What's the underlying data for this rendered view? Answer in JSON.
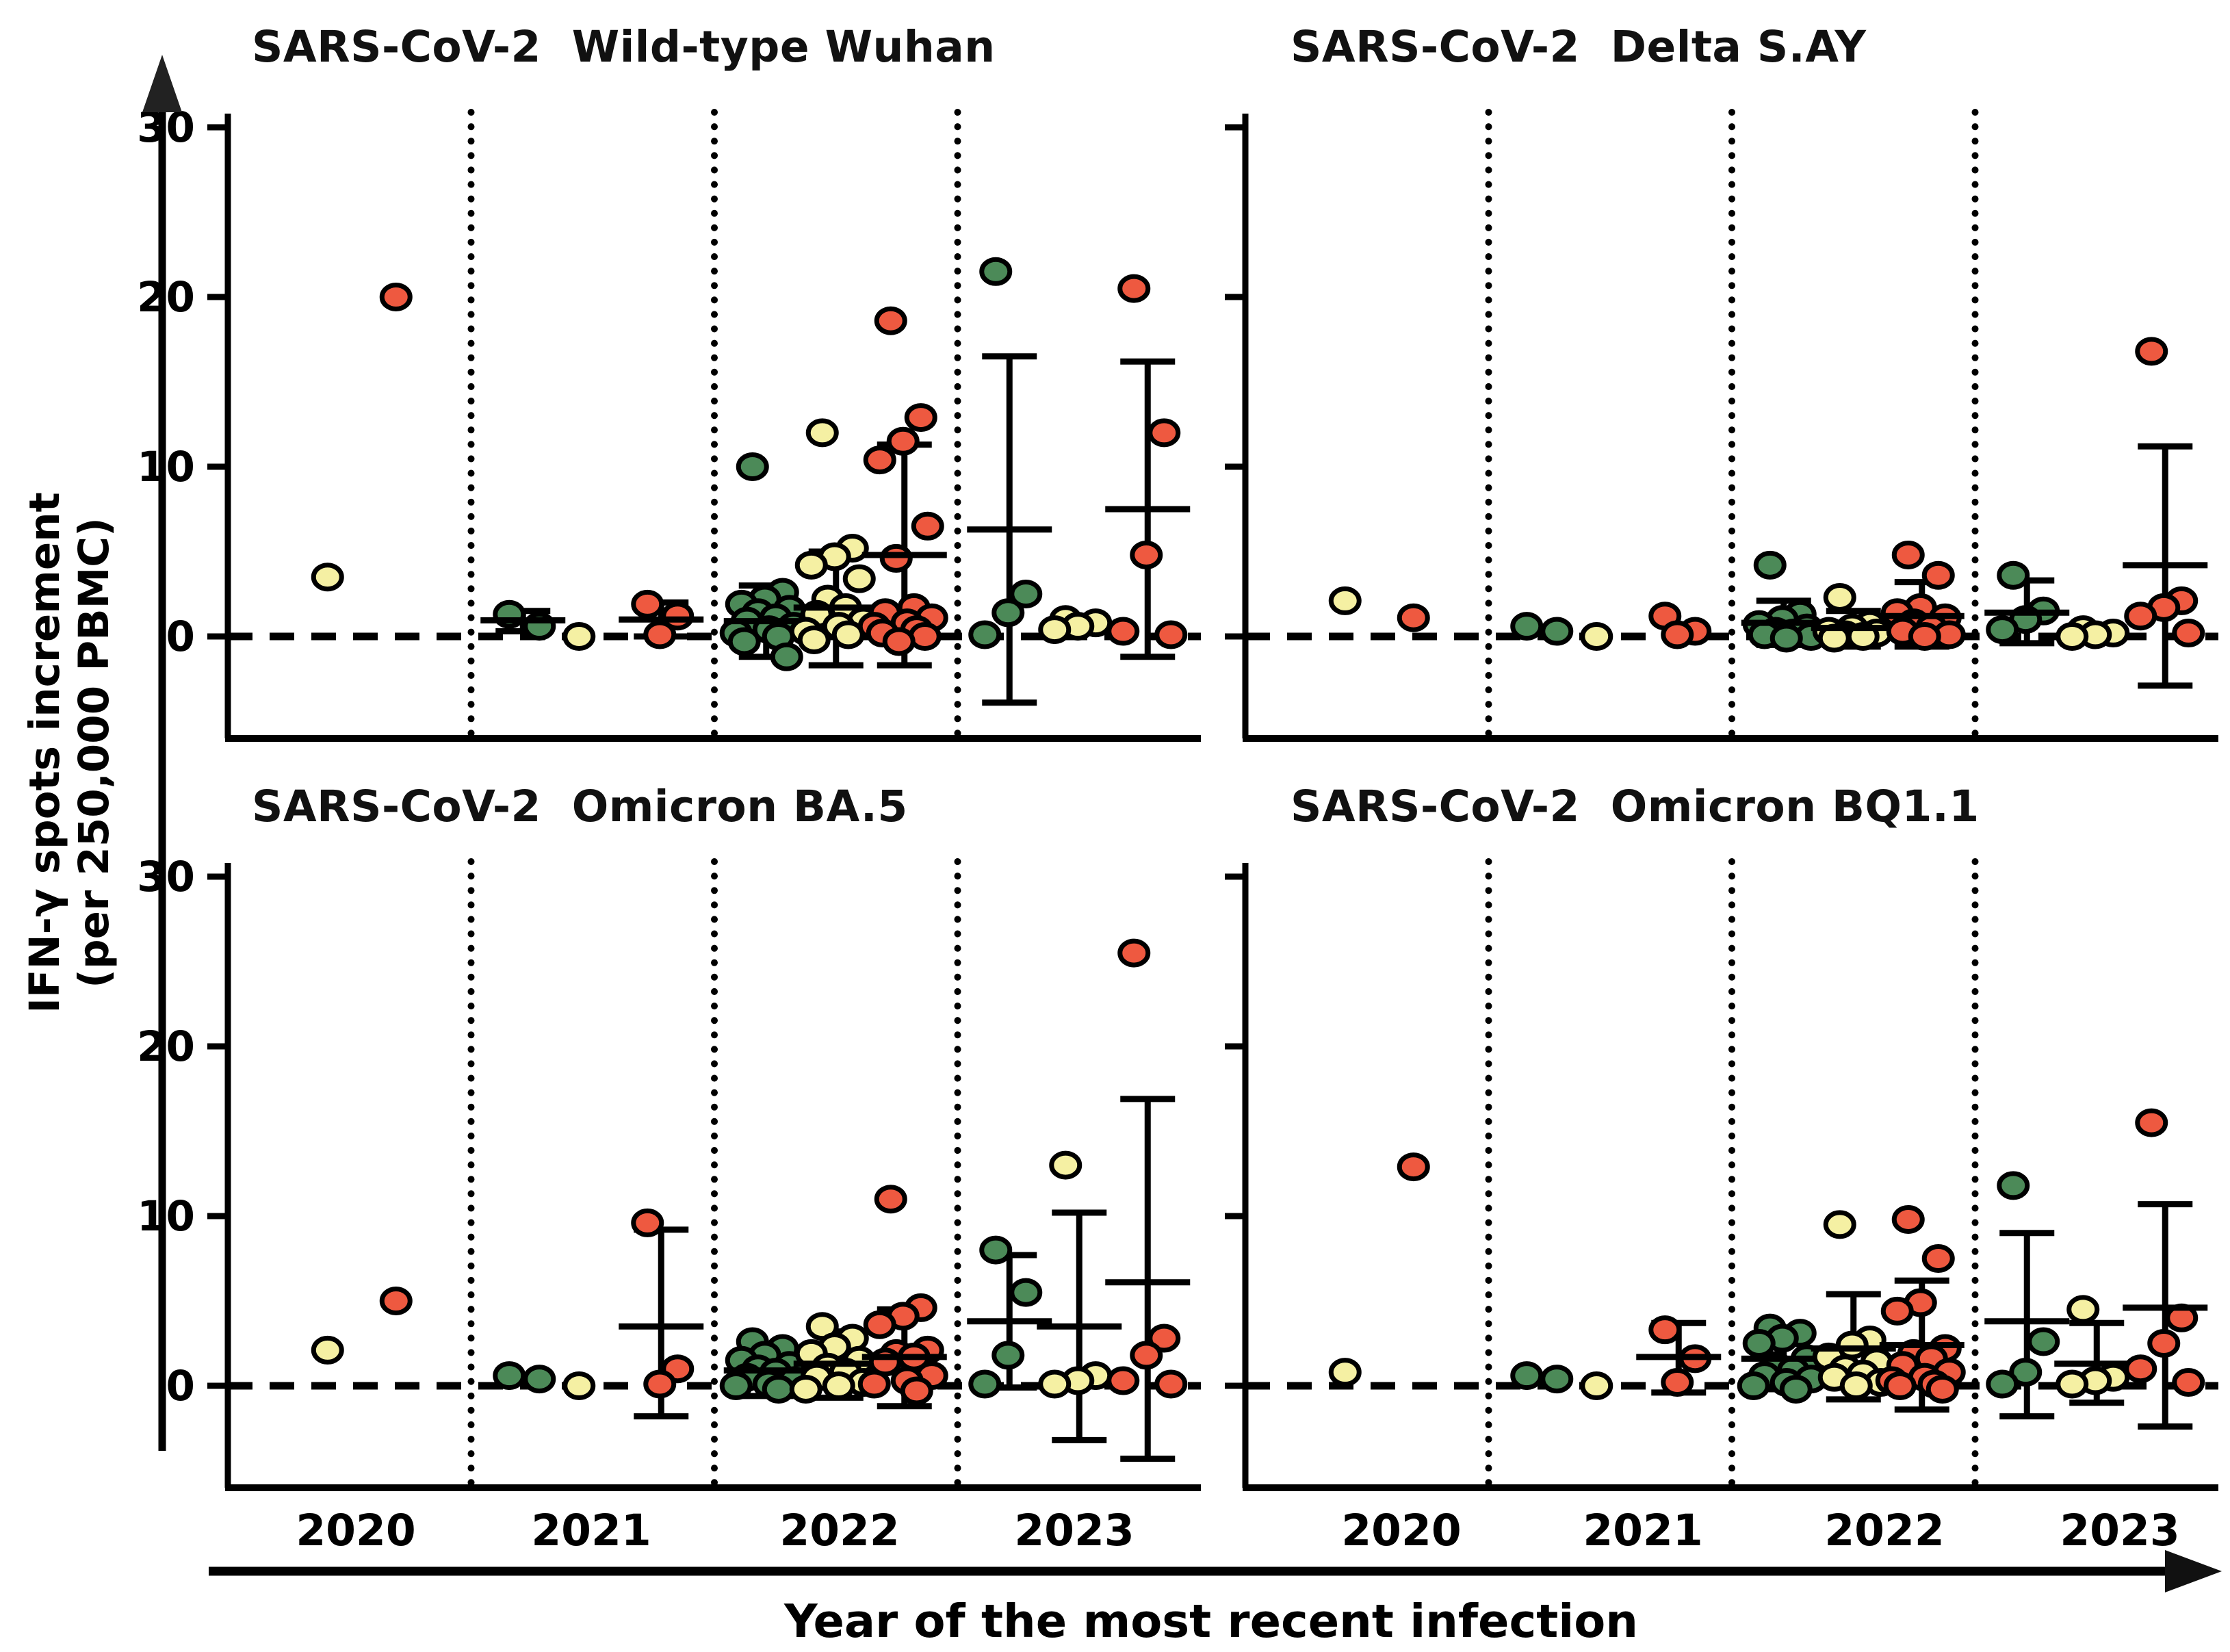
{
  "figure": {
    "ylabel_line1": "IFN-γ spots increment",
    "ylabel_line2": "(per 250,000 PBMC)",
    "xlabel": "Year of the most recent infection",
    "years": [
      "2020",
      "2021",
      "2022",
      "2023"
    ]
  },
  "colors": {
    "group_green": "#4C8A58",
    "group_yellow": "#F5F0A3",
    "group_red": "#EE5940",
    "outline": "#000000"
  },
  "chart_data": [
    {
      "type": "scatter",
      "title": "SARS-CoV-2  Wild-type Wuhan",
      "ylabel": "IFN-γ spots increment (per 250,000 PBMC)",
      "ylim": [
        -6,
        32
      ],
      "yticks": [
        0,
        10,
        20,
        30
      ],
      "ytick_labels_shown": true,
      "zero_line": true,
      "grid": "dotted-year-separators",
      "series": [
        {
          "year": "2020",
          "color": "yellow",
          "values": [
            3.5
          ],
          "err": null
        },
        {
          "year": "2020",
          "color": "red",
          "values": [
            20.0
          ],
          "err": null
        },
        {
          "year": "2021",
          "color": "green",
          "values": [
            1.3,
            0.6
          ],
          "err": [
            0.3,
            0.95,
            1.5
          ]
        },
        {
          "year": "2021",
          "color": "yellow",
          "values": [
            0.0
          ],
          "err": null
        },
        {
          "year": "2021",
          "color": "red",
          "values": [
            1.9,
            1.2,
            0.1
          ],
          "err": [
            0.0,
            1.0,
            2.0
          ]
        },
        {
          "year": "2022",
          "color": "green",
          "values": [
            10.0,
            2.6,
            2.2,
            1.9,
            1.6,
            1.4,
            1.1,
            0.9,
            0.6,
            0.4,
            0.2,
            0.0,
            -0.3,
            -1.2
          ],
          "err": [
            -1.2,
            0.9,
            3.0
          ]
        },
        {
          "year": "2022",
          "color": "yellow",
          "values": [
            12.0,
            5.2,
            4.7,
            4.2,
            3.4,
            2.2,
            1.7,
            1.3,
            0.9,
            0.6,
            0.3,
            0.1,
            -0.2
          ],
          "err": [
            -1.7,
            1.7,
            5.0
          ]
        },
        {
          "year": "2022",
          "color": "red",
          "values": [
            18.6,
            12.9,
            11.5,
            10.4,
            6.5,
            4.6,
            1.7,
            1.4,
            1.1,
            0.8,
            0.6,
            0.4,
            0.2,
            0.0,
            -0.3
          ],
          "err": [
            -1.7,
            4.8,
            11.3
          ]
        },
        {
          "year": "2023",
          "color": "green",
          "values": [
            21.5,
            2.5,
            1.4,
            0.1
          ],
          "err": [
            -3.9,
            6.3,
            16.5
          ]
        },
        {
          "year": "2023",
          "color": "yellow",
          "values": [
            1.0,
            0.8,
            0.6,
            0.4
          ],
          "err": null
        },
        {
          "year": "2023",
          "color": "red",
          "values": [
            20.5,
            12.0,
            4.8,
            0.3,
            0.1
          ],
          "err": [
            -1.2,
            7.5,
            16.2
          ]
        }
      ]
    },
    {
      "type": "scatter",
      "title": "SARS-CoV-2  Delta S.AY",
      "ylim": [
        -6,
        32
      ],
      "yticks": [
        0,
        10,
        20,
        30
      ],
      "ytick_labels_shown": false,
      "zero_line": true,
      "grid": "dotted-year-separators",
      "series": [
        {
          "year": "2020",
          "color": "yellow",
          "values": [
            2.1
          ],
          "err": null
        },
        {
          "year": "2020",
          "color": "red",
          "values": [
            1.1
          ],
          "err": null
        },
        {
          "year": "2021",
          "color": "green",
          "values": [
            0.6,
            0.3
          ],
          "err": null
        },
        {
          "year": "2021",
          "color": "yellow",
          "values": [
            0.0
          ],
          "err": null
        },
        {
          "year": "2021",
          "color": "red",
          "values": [
            1.2,
            0.3,
            0.1
          ],
          "err": null
        },
        {
          "year": "2022",
          "color": "green",
          "values": [
            4.2,
            1.3,
            1.0,
            0.7,
            0.5,
            0.3,
            0.2,
            0.1,
            0.0,
            -0.1
          ],
          "err": [
            -0.5,
            0.8,
            2.1
          ]
        },
        {
          "year": "2022",
          "color": "yellow",
          "values": [
            2.3,
            0.7,
            0.5,
            0.3,
            0.2,
            0.1,
            0.0,
            -0.1
          ],
          "err": [
            -0.6,
            0.5,
            1.5
          ]
        },
        {
          "year": "2022",
          "color": "red",
          "values": [
            4.8,
            3.6,
            1.7,
            1.4,
            1.1,
            0.8,
            0.5,
            0.3,
            0.1,
            0.0
          ],
          "err": [
            -0.6,
            1.2,
            3.2
          ]
        },
        {
          "year": "2023",
          "color": "green",
          "values": [
            3.6,
            1.5,
            1.0,
            0.4
          ],
          "err": [
            -0.4,
            1.4,
            3.3
          ]
        },
        {
          "year": "2023",
          "color": "yellow",
          "values": [
            0.4,
            0.2,
            0.1,
            0.0
          ],
          "err": null
        },
        {
          "year": "2023",
          "color": "red",
          "values": [
            16.8,
            2.1,
            1.7,
            1.2,
            0.2
          ],
          "err": [
            -2.9,
            4.2,
            11.2
          ]
        }
      ]
    },
    {
      "type": "scatter",
      "title": "SARS-CoV-2  Omicron BA.5",
      "ylim": [
        -6,
        32
      ],
      "yticks": [
        0,
        10,
        20,
        30
      ],
      "ytick_labels_shown": true,
      "zero_line": true,
      "grid": "dotted-year-separators",
      "series": [
        {
          "year": "2020",
          "color": "yellow",
          "values": [
            2.1
          ],
          "err": null
        },
        {
          "year": "2020",
          "color": "red",
          "values": [
            5.0
          ],
          "err": null
        },
        {
          "year": "2021",
          "color": "green",
          "values": [
            0.6,
            0.4
          ],
          "err": null
        },
        {
          "year": "2021",
          "color": "yellow",
          "values": [
            0.0
          ],
          "err": null
        },
        {
          "year": "2021",
          "color": "red",
          "values": [
            9.6,
            1.0,
            0.1
          ],
          "err": [
            -1.8,
            3.5,
            9.2
          ]
        },
        {
          "year": "2022",
          "color": "green",
          "values": [
            2.6,
            2.2,
            1.8,
            1.5,
            1.2,
            1.0,
            0.8,
            0.5,
            0.3,
            0.1,
            0.0,
            -0.2
          ],
          "err": [
            -0.6,
            0.9,
            2.3
          ]
        },
        {
          "year": "2022",
          "color": "yellow",
          "values": [
            3.5,
            2.8,
            2.3,
            1.9,
            1.5,
            1.1,
            0.8,
            0.5,
            0.2,
            0.0,
            -0.2
          ],
          "err": [
            -0.7,
            1.3,
            3.2
          ]
        },
        {
          "year": "2022",
          "color": "red",
          "values": [
            11.0,
            4.6,
            4.1,
            3.6,
            2.1,
            1.9,
            1.7,
            1.4,
            0.6,
            0.3,
            0.1,
            -0.3
          ],
          "err": [
            -1.2,
            1.7,
            4.5
          ]
        },
        {
          "year": "2023",
          "color": "green",
          "values": [
            8.0,
            5.5,
            1.8,
            0.1
          ],
          "err": [
            -0.1,
            3.8,
            7.7
          ]
        },
        {
          "year": "2023",
          "color": "yellow",
          "values": [
            13.0,
            0.6,
            0.3,
            0.1
          ],
          "err": [
            -3.2,
            3.5,
            10.2
          ]
        },
        {
          "year": "2023",
          "color": "red",
          "values": [
            25.5,
            2.8,
            1.8,
            0.3,
            0.1
          ],
          "err": [
            -4.3,
            6.1,
            16.9
          ]
        }
      ]
    },
    {
      "type": "scatter",
      "title": "SARS-CoV-2  Omicron BQ1.1",
      "ylim": [
        -6,
        32
      ],
      "yticks": [
        0,
        10,
        20,
        30
      ],
      "ytick_labels_shown": false,
      "zero_line": true,
      "grid": "dotted-year-separators",
      "series": [
        {
          "year": "2020",
          "color": "yellow",
          "values": [
            0.8
          ],
          "err": null
        },
        {
          "year": "2020",
          "color": "red",
          "values": [
            12.9
          ],
          "err": null
        },
        {
          "year": "2021",
          "color": "green",
          "values": [
            0.6,
            0.4
          ],
          "err": null
        },
        {
          "year": "2021",
          "color": "yellow",
          "values": [
            0.0
          ],
          "err": null
        },
        {
          "year": "2021",
          "color": "red",
          "values": [
            3.3,
            1.6,
            0.2
          ],
          "err": [
            -0.4,
            1.7,
            3.7
          ]
        },
        {
          "year": "2022",
          "color": "green",
          "values": [
            3.4,
            3.1,
            2.8,
            2.5,
            1.6,
            1.2,
            0.9,
            0.6,
            0.4,
            0.2,
            0.0,
            -0.2
          ],
          "err": [
            -0.2,
            1.6,
            3.4
          ]
        },
        {
          "year": "2022",
          "color": "yellow",
          "values": [
            9.5,
            2.7,
            2.4,
            1.7,
            1.4,
            1.0,
            0.7,
            0.5,
            0.2,
            0.0
          ],
          "err": [
            -0.8,
            2.2,
            5.4
          ]
        },
        {
          "year": "2022",
          "color": "red",
          "values": [
            9.8,
            7.5,
            4.9,
            4.4,
            2.2,
            1.9,
            1.6,
            1.2,
            0.8,
            0.5,
            0.3,
            0.1,
            0.0,
            -0.2
          ],
          "err": [
            -1.4,
            2.4,
            6.2
          ]
        },
        {
          "year": "2023",
          "color": "green",
          "values": [
            11.8,
            2.6,
            0.8,
            0.1
          ],
          "err": [
            -1.8,
            3.8,
            9.0
          ]
        },
        {
          "year": "2023",
          "color": "yellow",
          "values": [
            4.5,
            0.5,
            0.3,
            0.1
          ],
          "err": [
            -1.0,
            1.3,
            3.7
          ]
        },
        {
          "year": "2023",
          "color": "red",
          "values": [
            15.5,
            4.0,
            2.5,
            1.0,
            0.2
          ],
          "err": [
            -2.4,
            4.6,
            10.7
          ]
        }
      ]
    }
  ]
}
